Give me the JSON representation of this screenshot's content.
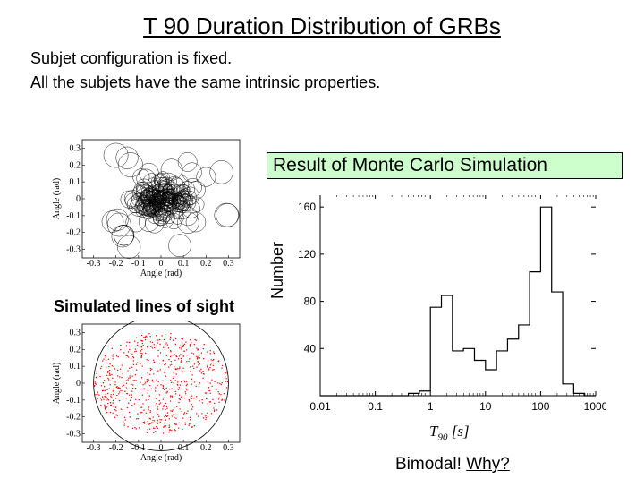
{
  "title": "T 90 Duration Distribution of GRBs",
  "subtitle1": "Subjet configuration is fixed.",
  "subtitle2": "All the subjets have the same intrinsic properties.",
  "result_banner": "Result of Monte Carlo Simulation",
  "left_caption": "Simulated lines of sight",
  "bimodal_text": "Bimodal!",
  "bimodal_why": "Why?",
  "hist_ylabel": "Number",
  "hist_xlabel": "T₉₀ [s]",
  "scatter_top": {
    "type": "scatter-circles",
    "xlabel": "Angle (rad)",
    "ylabel": "Angle (rad)",
    "xlim": [
      -0.35,
      0.35
    ],
    "ylim": [
      -0.35,
      0.35
    ],
    "xticks": [
      -0.3,
      -0.2,
      -0.1,
      0,
      0.1,
      0.2,
      0.3
    ],
    "yticks": [
      -0.3,
      -0.2,
      -0.1,
      0,
      0.1,
      0.2,
      0.3
    ],
    "circle_color": "#000000",
    "background": "#ffffff",
    "n_circles": 220
  },
  "scatter_bottom": {
    "type": "scatter-points",
    "xlabel": "Angle (rad)",
    "ylabel": "Angle (rad)",
    "xlim": [
      -0.35,
      0.35
    ],
    "ylim": [
      -0.35,
      0.35
    ],
    "xticks": [
      -0.3,
      -0.2,
      -0.1,
      0,
      0.1,
      0.2,
      0.3
    ],
    "yticks": [
      -0.3,
      -0.2,
      -0.1,
      0,
      0.1,
      0.2,
      0.3
    ],
    "point_color": "#ff0000",
    "boundary_circle_color": "#000000",
    "boundary_radius": 0.3,
    "background": "#ffffff",
    "n_points": 700
  },
  "histogram": {
    "type": "histogram-step-logx",
    "xscale": "log",
    "xlim": [
      0.01,
      1000
    ],
    "ylim": [
      0,
      170
    ],
    "xticks": [
      0.01,
      0.1,
      1,
      10,
      100,
      1000
    ],
    "xticklabels": [
      "0.01",
      "0.1",
      "1",
      "10",
      "100",
      "1000"
    ],
    "yticks": [
      40,
      80,
      120,
      160
    ],
    "line_color": "#000000",
    "line_width": 1.2,
    "background": "#ffffff",
    "bins_log10_edges": [
      -2.0,
      -1.8,
      -1.6,
      -1.4,
      -1.2,
      -1.0,
      -0.8,
      -0.6,
      -0.4,
      -0.2,
      0.0,
      0.2,
      0.4,
      0.6,
      0.8,
      1.0,
      1.2,
      1.4,
      1.6,
      1.8,
      2.0,
      2.2,
      2.4,
      2.6,
      2.8,
      3.0
    ],
    "counts": [
      0,
      0,
      0,
      0,
      0,
      0,
      0,
      0,
      2,
      4,
      75,
      85,
      38,
      40,
      30,
      22,
      38,
      48,
      60,
      105,
      160,
      88,
      10,
      2,
      0
    ]
  }
}
